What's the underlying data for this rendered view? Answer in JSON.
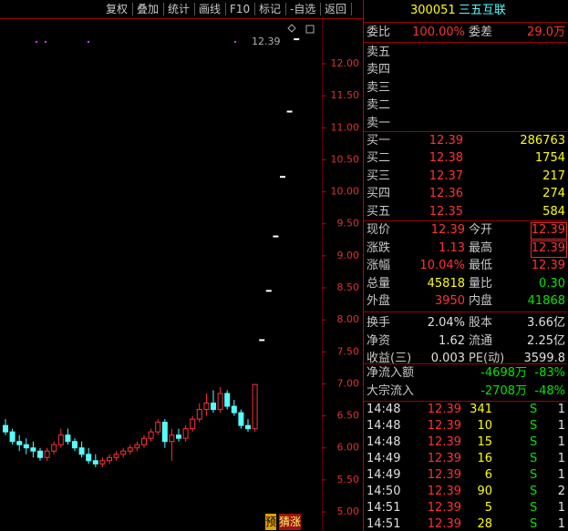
{
  "toolbar": [
    "复权",
    "叠加",
    "统计",
    "画线",
    "F10",
    "标记",
    "-自选",
    "返回"
  ],
  "chart": {
    "last_price_label": "12.39",
    "yticks": [
      {
        "value": 5,
        "label": "5.00"
      },
      {
        "value": 5.5,
        "label": "5.50"
      },
      {
        "value": 6,
        "label": "6.00"
      },
      {
        "value": 6.5,
        "label": "6.50"
      },
      {
        "value": 7,
        "label": "7.00"
      },
      {
        "value": 7.5,
        "label": "7.50"
      },
      {
        "value": 8,
        "label": "8.00"
      },
      {
        "value": 8.5,
        "label": "8.50"
      },
      {
        "value": 9,
        "label": "9.00"
      },
      {
        "value": 9.5,
        "label": "9.50"
      },
      {
        "value": 10,
        "label": "10.00"
      },
      {
        "value": 10.5,
        "label": "10.50"
      },
      {
        "value": 11,
        "label": "11.00"
      },
      {
        "value": 11.5,
        "label": "11.50"
      },
      {
        "value": 12,
        "label": "12.00"
      }
    ],
    "candles": [
      [
        6.35,
        6.45,
        6.2,
        6.25
      ],
      [
        6.25,
        6.3,
        6.05,
        6.1
      ],
      [
        6.1,
        6.2,
        5.95,
        6.05
      ],
      [
        6.05,
        6.15,
        5.9,
        6.0
      ],
      [
        6.0,
        6.1,
        5.85,
        5.95
      ],
      [
        5.95,
        6.0,
        5.8,
        5.85
      ],
      [
        5.85,
        6.0,
        5.8,
        5.95
      ],
      [
        5.95,
        6.1,
        5.9,
        6.05
      ],
      [
        6.05,
        6.3,
        6.0,
        6.2
      ],
      [
        6.2,
        6.3,
        6.05,
        6.1
      ],
      [
        6.1,
        6.15,
        5.95,
        6.0
      ],
      [
        6.0,
        6.1,
        5.85,
        5.9
      ],
      [
        5.9,
        6.0,
        5.75,
        5.8
      ],
      [
        5.8,
        5.9,
        5.7,
        5.75
      ],
      [
        5.75,
        5.85,
        5.7,
        5.8
      ],
      [
        5.8,
        5.9,
        5.75,
        5.85
      ],
      [
        5.85,
        5.95,
        5.8,
        5.9
      ],
      [
        5.9,
        6.0,
        5.85,
        5.95
      ],
      [
        5.95,
        6.05,
        5.9,
        6.0
      ],
      [
        6.0,
        6.1,
        5.95,
        6.05
      ],
      [
        6.05,
        6.2,
        6.0,
        6.15
      ],
      [
        6.15,
        6.3,
        6.1,
        6.25
      ],
      [
        6.25,
        6.45,
        6.2,
        6.4
      ],
      [
        6.4,
        6.45,
        6.0,
        6.1
      ],
      [
        6.1,
        6.3,
        5.8,
        6.2
      ],
      [
        6.2,
        6.3,
        6.1,
        6.15
      ],
      [
        6.15,
        6.35,
        6.1,
        6.3
      ],
      [
        6.3,
        6.5,
        6.25,
        6.45
      ],
      [
        6.45,
        6.7,
        6.4,
        6.6
      ],
      [
        6.6,
        6.85,
        6.5,
        6.7
      ],
      [
        6.7,
        6.9,
        6.55,
        6.6
      ],
      [
        6.6,
        6.95,
        6.55,
        6.85
      ],
      [
        6.85,
        6.9,
        6.6,
        6.65
      ],
      [
        6.65,
        6.75,
        6.5,
        6.55
      ],
      [
        6.55,
        6.6,
        6.3,
        6.35
      ],
      [
        6.35,
        6.45,
        6.25,
        6.3
      ],
      [
        6.3,
        7.0,
        6.25,
        6.99
      ],
      [
        7.69,
        7.69,
        7.69,
        7.69
      ],
      [
        8.46,
        8.46,
        8.46,
        8.46
      ],
      [
        9.31,
        9.31,
        9.31,
        9.31
      ],
      [
        10.24,
        10.24,
        10.24,
        10.24
      ],
      [
        11.26,
        11.26,
        11.26,
        11.26
      ],
      [
        12.39,
        12.39,
        12.39,
        12.39
      ]
    ]
  },
  "badges": [
    "预",
    "猜涨"
  ],
  "quote": {
    "code": "300051",
    "name": "三五互联",
    "ratio": [
      "委比",
      "100.00%",
      "委差",
      "29.0万"
    ],
    "sell": [
      "卖五",
      "卖四",
      "卖三",
      "卖二",
      "卖一"
    ],
    "buy": [
      [
        "买一",
        "12.39",
        "286763"
      ],
      [
        "买二",
        "12.38",
        "1754"
      ],
      [
        "买三",
        "12.37",
        "217"
      ],
      [
        "买四",
        "12.36",
        "274"
      ],
      [
        "买五",
        "12.35",
        "584"
      ]
    ],
    "stats": [
      [
        "现价",
        "12.39",
        "今开",
        "12.39"
      ],
      [
        "涨跌",
        "1.13",
        "最高",
        "12.39"
      ],
      [
        "涨幅",
        "10.04%",
        "最低",
        "12.39"
      ],
      [
        "总量",
        "45818",
        "量比",
        "0.30"
      ],
      [
        "外盘",
        "3950",
        "内盘",
        "41868"
      ],
      [
        "换手",
        "2.04%",
        "股本",
        "3.66亿"
      ],
      [
        "净资",
        "1.62",
        "流通",
        "2.25亿"
      ],
      [
        "收益(三)",
        "0.003",
        "PE(动)",
        "3599.8"
      ]
    ],
    "flow": [
      [
        "净流入额",
        "-4698万",
        "-83%"
      ],
      [
        "大宗流入",
        "-2708万",
        "-48%"
      ]
    ],
    "trades": [
      [
        "14:48",
        "12.39",
        "341",
        "S",
        "1"
      ],
      [
        "14:48",
        "12.39",
        "10",
        "S",
        "1"
      ],
      [
        "14:48",
        "12.39",
        "15",
        "S",
        "1"
      ],
      [
        "14:49",
        "12.39",
        "16",
        "S",
        "1"
      ],
      [
        "14:49",
        "12.39",
        "6",
        "S",
        "1"
      ],
      [
        "14:50",
        "12.39",
        "90",
        "S",
        "2"
      ],
      [
        "14:51",
        "12.39",
        "5",
        "S",
        "1"
      ],
      [
        "14:51",
        "12.39",
        "28",
        "S",
        "1"
      ]
    ]
  }
}
